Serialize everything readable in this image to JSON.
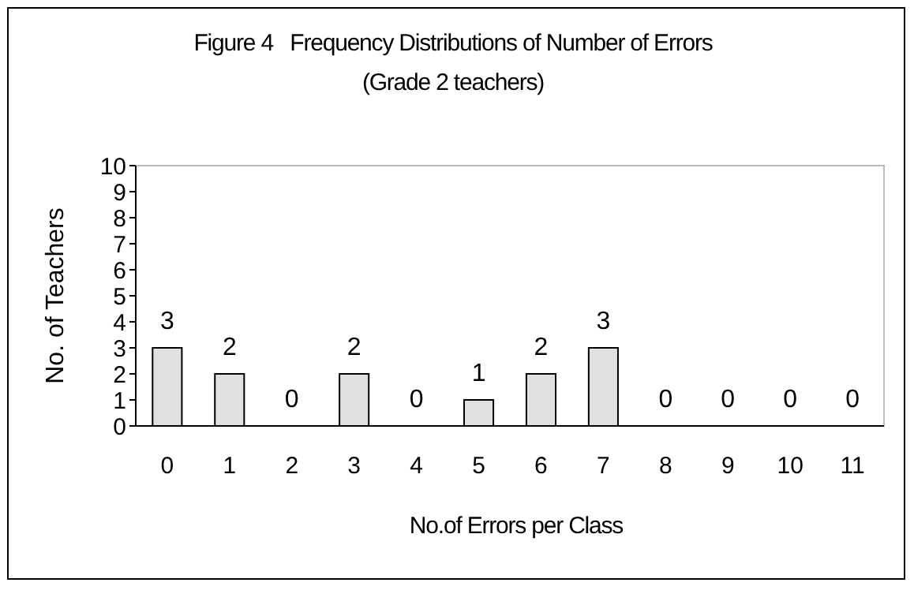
{
  "chart_data": {
    "type": "bar",
    "title": "Figure 4   Frequency Distributions of Number of Errors",
    "subtitle": "(Grade 2 teachers)",
    "xlabel": "No.of Errors per Class",
    "ylabel": "No. of Teachers",
    "categories": [
      "0",
      "1",
      "2",
      "3",
      "4",
      "5",
      "6",
      "7",
      "8",
      "9",
      "10",
      "11"
    ],
    "values": [
      3,
      2,
      0,
      2,
      0,
      1,
      2,
      3,
      0,
      0,
      0,
      0
    ],
    "color": "#e0e0e0",
    "ylim": [
      0,
      10
    ],
    "yticks": [
      0,
      1,
      2,
      3,
      4,
      5,
      6,
      7,
      8,
      9,
      10
    ],
    "grid": false,
    "data_labels": true
  }
}
